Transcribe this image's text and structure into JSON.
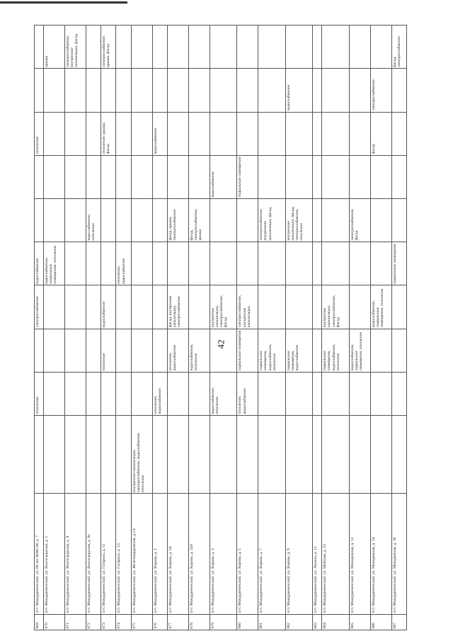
{
  "page_number": "42",
  "table": {
    "rows": [
      [
        "669",
        "пгт. Междуреченский, ул. 60 лет ВЛКСМ, д. 7",
        null,
        "отопление",
        null,
        "электроснабжение",
        "водоснабжение",
        null,
        null,
        "отопление",
        null,
        null
      ],
      [
        "670",
        "пгт. Междуреченский, ул. Волгоградская, д. 1",
        null,
        null,
        null,
        null,
        "водоснабжение, подвальные помещения, отопление",
        null,
        null,
        null,
        null,
        "крыша"
      ],
      [
        "671",
        "пгт. Междуреченский, ул. Волгоградская, д. 9",
        null,
        null,
        null,
        null,
        null,
        null,
        null,
        null,
        null,
        "электроснабжение, внутренние канализации, фасад"
      ],
      [
        "672",
        "пгт. Междуреченский, ул. Волгоградская, д. 9а",
        null,
        null,
        null,
        null,
        null,
        "водоснабжение, отопление",
        null,
        null,
        null,
        null
      ],
      [
        "673",
        "пгт. Междуреченский, ул. Гагарина, д. 11",
        null,
        null,
        "отопление",
        "водоснабжение",
        null,
        null,
        null,
        "отопление, крыша, фасад",
        null,
        "электроснабжение, крыша, фасад"
      ],
      [
        "674",
        "пгт. Междуреченский, ул. Гагарина, д. 13",
        null,
        null,
        null,
        null,
        "отопление, водоснабжение",
        null,
        null,
        null,
        null,
        null
      ],
      [
        "675",
        "пгт. Междуреченский, ул. Железнодорожная, д.1А",
        "внутренние канализации, электроснабжение, водоснабжение, отопление",
        null,
        null,
        null,
        null,
        null,
        null,
        null,
        null,
        null
      ],
      [
        "676",
        "пгт. Междуреченский, ул. Кирова, д. 1",
        null,
        "отопление, водоснабжение",
        null,
        null,
        null,
        null,
        null,
        "водоснабжение",
        null,
        null
      ],
      [
        "677",
        "пгт. Междуреченский, ул. Кирова, д. 24",
        null,
        null,
        "отопление, водоснабжение",
        "фасад, внутренние канализации, электроснабжение",
        null,
        "фасад, крыша, электроснабжение",
        null,
        null,
        null,
        null
      ],
      [
        "678",
        "пгт. Междуреченский, ул. Кирова, д. 24А",
        null,
        null,
        "водоснабжение, отопление",
        null,
        null,
        "фасад, электроснабжение, крыша",
        null,
        null,
        null,
        null
      ],
      [
        "679",
        "пгт. Междуреченский, ул. Кирова, д. 3",
        null,
        "водоснабжение, отопление",
        null,
        "внутренние канализации, электроснабжение, фасад",
        null,
        null,
        "водоснабжение",
        null,
        null,
        null
      ],
      [
        "680",
        "пгт. Междуреченский, ул. Кирова, д. 5",
        null,
        "отопление, водоснабжение",
        "подвальные помещения",
        "электроснабжение, внутренние канализации",
        null,
        null,
        "подвальные помещения",
        null,
        null,
        null
      ],
      [
        "681",
        "пгт. Междуреченский, ул. Кирова, д. 7",
        null,
        null,
        "подвальные помещения, водоснабжение, отопление",
        null,
        null,
        "электроснабжение, внутренние канализации, фасад",
        null,
        null,
        null,
        null
      ],
      [
        "682",
        "пгт. Междуреченский, ул. Кирова, д. 9",
        null,
        null,
        "подвальные помещения, водоснабжение",
        null,
        null,
        "внутренние канализации, фасад, электроснабжение, отопление",
        null,
        null,
        "водоснабжение",
        null
      ],
      [
        "683",
        "пгт. Междуреченский, ул. Ленина, д. 11",
        null,
        null,
        null,
        null,
        null,
        null,
        null,
        null,
        null,
        null
      ],
      [
        "684",
        "пгт. Междуреченский, ул. Майская, д. 23",
        null,
        null,
        "подвальные помещения, водоснабжение, отопление",
        "внутренние канализации, электроснабжение, фасад",
        null,
        null,
        null,
        null,
        null,
        null
      ],
      [
        "685",
        "пгт. Междуреченский, ул. Молодежная, д. 12",
        null,
        null,
        "водоснабжение, подвальные помещения, отопление",
        null,
        null,
        "электроснабжение, фасад",
        null,
        null,
        null,
        null
      ],
      [
        "686",
        "пгт. Междуреченский, ул. Молодежная, д. 14",
        null,
        null,
        null,
        "водоснабжение, подвальные помещения, отопление",
        null,
        null,
        null,
        "фасад",
        "электроснабжение",
        null
      ],
      [
        "687",
        "пгт. Междуреченский, ул. Молодежная, д. 16",
        null,
        null,
        null,
        null,
        "подвальные помещения",
        null,
        null,
        null,
        null,
        "фасад, электроснабжение"
      ]
    ]
  }
}
